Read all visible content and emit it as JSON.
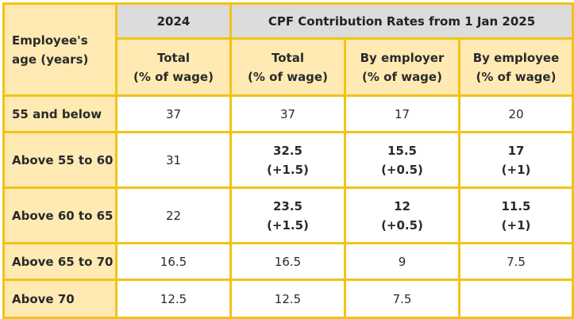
{
  "table": {
    "age_header_line1": "Employee's",
    "age_header_line2": "age (years)",
    "year_2024": "2024",
    "group_2025": "CPF Contribution Rates from 1 Jan 2025",
    "subheaders": [
      {
        "line1": "Total",
        "line2": "(% of wage)"
      },
      {
        "line1": "Total",
        "line2": "(% of wage)"
      },
      {
        "line1": "By employer",
        "line2": "(% of wage)"
      },
      {
        "line1": "By employee",
        "line2": "(% of wage)"
      }
    ],
    "rows": [
      {
        "age": "55 and below",
        "c2024": "37",
        "total": "37",
        "total_change": "",
        "employer": "17",
        "employer_change": "",
        "employee": "20",
        "employee_change": ""
      },
      {
        "age": "Above 55 to 60",
        "c2024": "31",
        "total": "32.5",
        "total_change": "(+1.5)",
        "employer": "15.5",
        "employer_change": "(+0.5)",
        "employee": "17",
        "employee_change": "(+1)"
      },
      {
        "age": "Above 60 to 65",
        "c2024": "22",
        "total": "23.5",
        "total_change": "(+1.5)",
        "employer": "12",
        "employer_change": "(+0.5)",
        "employee": "11.5",
        "employee_change": "(+1)"
      },
      {
        "age": "Above 65 to 70",
        "c2024": "16.5",
        "total": "16.5",
        "total_change": "",
        "employer": "9",
        "employer_change": "",
        "employee": "7.5",
        "employee_change": ""
      },
      {
        "age": "Above 70",
        "c2024": "12.5",
        "total": "12.5",
        "total_change": "",
        "employer": "7.5",
        "employer_change": "",
        "employee": "",
        "employee_change": ""
      }
    ]
  },
  "colors": {
    "border": "#f2c315",
    "header_fill": "#ffeab4",
    "grey_header_fill": "#dcdcdc"
  }
}
